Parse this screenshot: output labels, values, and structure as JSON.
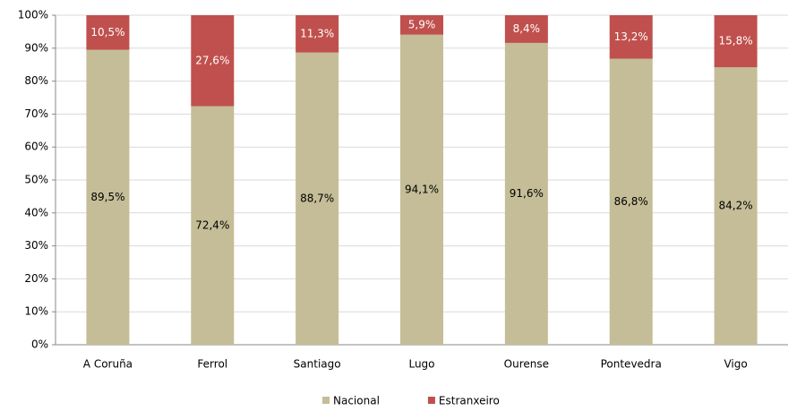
{
  "chart_data": {
    "type": "stacked_bar",
    "categories": [
      "A Coruña",
      "Ferrol",
      "Santiago",
      "Lugo",
      "Ourense",
      "Pontevedra",
      "Vigo"
    ],
    "series": [
      {
        "name": "Nacional",
        "color": "#c4bd97",
        "values": [
          89.5,
          72.4,
          88.7,
          94.1,
          91.6,
          86.8,
          84.2
        ],
        "value_labels": [
          "89,5%",
          "72,4%",
          "88,7%",
          "94,1%",
          "91,6%",
          "86,8%",
          "84,2%"
        ]
      },
      {
        "name": "Estranxeiro",
        "color": "#c0504d",
        "values": [
          10.5,
          27.6,
          11.3,
          5.9,
          8.4,
          13.2,
          15.8
        ],
        "value_labels": [
          "10,5%",
          "27,6%",
          "11,3%",
          "5,9%",
          "8,4%",
          "13,2%",
          "15,8%"
        ]
      }
    ],
    "ylim": [
      0,
      100
    ],
    "yticks": [
      {
        "value": 0,
        "label": "0%"
      },
      {
        "value": 10,
        "label": "10%"
      },
      {
        "value": 20,
        "label": "20%"
      },
      {
        "value": 30,
        "label": "30%"
      },
      {
        "value": 40,
        "label": "40%"
      },
      {
        "value": 50,
        "label": "50%"
      },
      {
        "value": 60,
        "label": "60%"
      },
      {
        "value": 70,
        "label": "70%"
      },
      {
        "value": 80,
        "label": "80%"
      },
      {
        "value": 90,
        "label": "90%"
      },
      {
        "value": 100,
        "label": "100%"
      }
    ],
    "grid": true,
    "legend": "bottom"
  }
}
